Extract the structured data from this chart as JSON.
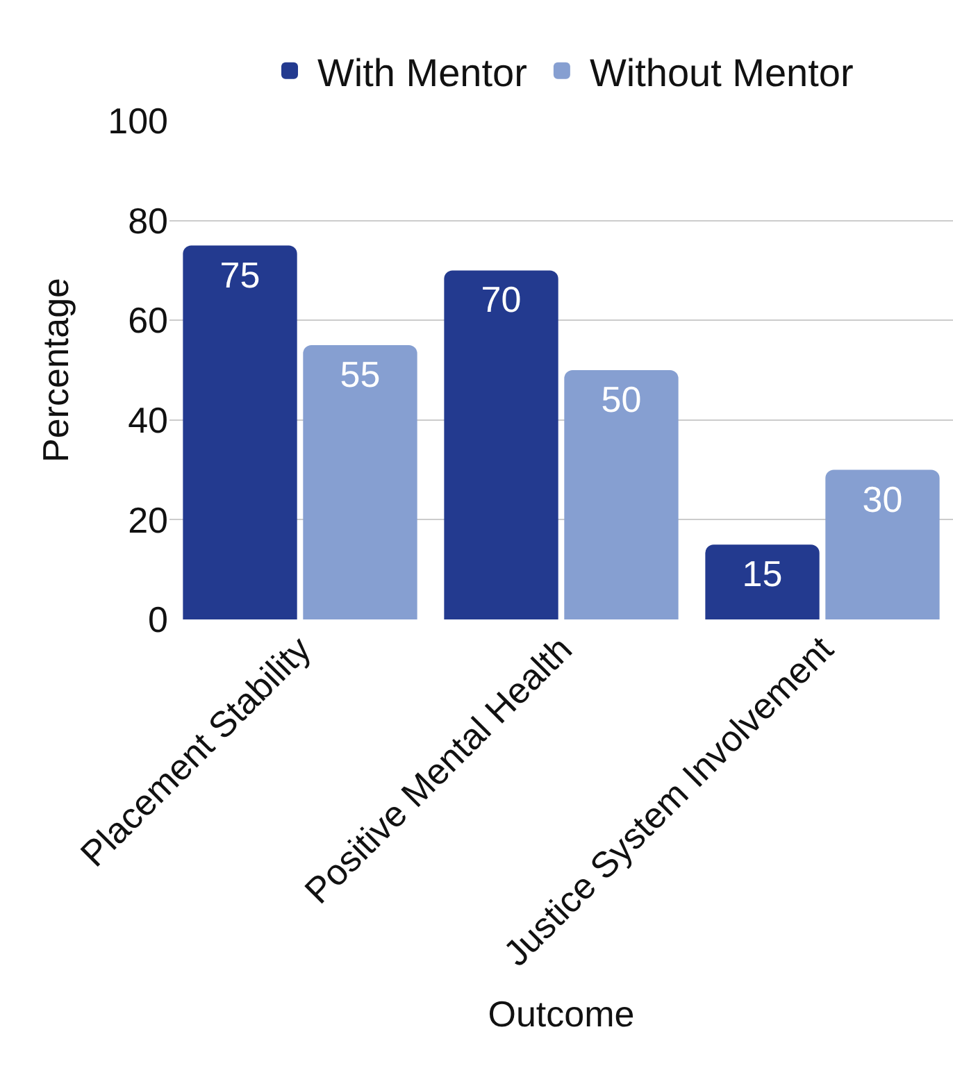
{
  "chart_data": {
    "type": "bar",
    "xlabel": "Outcome",
    "ylabel": "Percentage",
    "categories": [
      "Placement Stability",
      "Positive Mental Health",
      "Justice System Involvement"
    ],
    "series": [
      {
        "name": "With Mentor",
        "color": "#233a8f",
        "values": [
          75,
          70,
          15
        ]
      },
      {
        "name": "Without Mentor",
        "color": "#869fd1",
        "values": [
          55,
          50,
          30
        ]
      }
    ],
    "ylim": [
      0,
      100
    ],
    "yticks": [
      0,
      20,
      40,
      60,
      80,
      100
    ],
    "grid": "y",
    "legend": "top",
    "data_labels": true
  }
}
